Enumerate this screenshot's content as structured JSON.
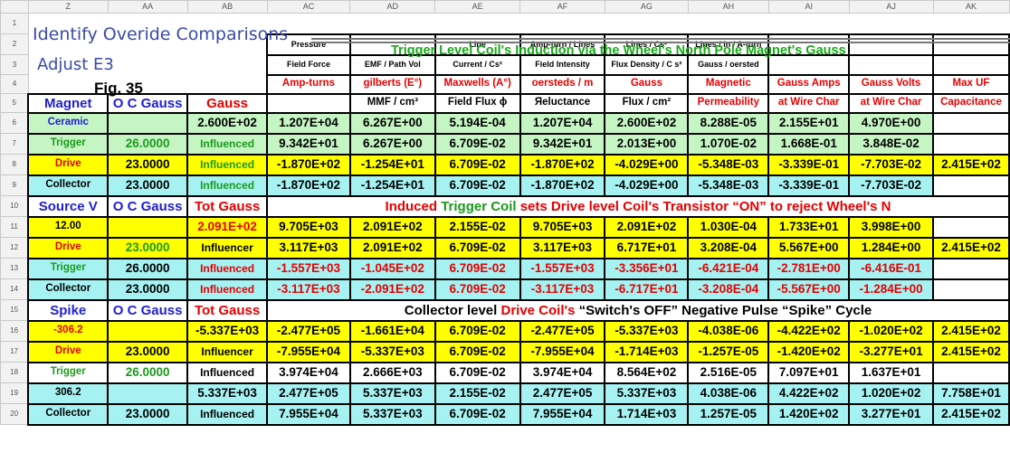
{
  "columns": [
    "Z",
    "AA",
    "AB",
    "AC",
    "AD",
    "AE",
    "AF",
    "AG",
    "AH",
    "AI",
    "AJ",
    "AK"
  ],
  "row_numbers": [
    "1",
    "2",
    "3",
    "4",
    "5",
    "6",
    "7",
    "8",
    "9",
    "10",
    "11",
    "12",
    "13",
    "14",
    "15",
    "16",
    "17",
    "18",
    "19",
    "20"
  ],
  "title": "Identify Overide Comparisons",
  "subtitle": "Adjust E3",
  "figure": "Fig. 35",
  "induction_title": "Trigger Level Coil's Induction via the Wheel's North Pole Magnet's Gauss",
  "headers": {
    "row2": [
      "Pressure",
      "",
      "Line",
      "Amp-turn / Lines",
      "Lines / Cs²",
      "Lines / in / A-turn",
      "",
      ""
    ],
    "row3": [
      "Field Force",
      "EMF / Path Vol",
      "Current / Cs²",
      "Field Intensity",
      "Flux Density / C s²",
      "Gauss / oersted",
      "",
      ""
    ],
    "row4": [
      "Amp-turns",
      "gilberts (E°)",
      "Maxwells (A°)",
      "oersteds / m",
      "Gauss",
      "Magnetic",
      "Gauss Amps",
      "Gauss Volts",
      "Max UF"
    ],
    "row5_left": [
      "Magnet",
      "O C Gauss",
      "Gauss"
    ],
    "row5": [
      "",
      "MMF / cm³",
      "Field Flux ϕ",
      "Яeluctance",
      "Flux / cm²",
      "Permeability",
      "at Wire Char",
      "at Wire Char",
      "Capacitance"
    ]
  },
  "section1": [
    {
      "label": "Ceramic",
      "oc": "",
      "gauss": "2.600E+02",
      "vals": [
        "1.207E+04",
        "6.267E+00",
        "5.194E-04",
        "1.207E+04",
        "2.600E+02",
        "8.288E-05",
        "2.155E+01",
        "4.970E+00",
        ""
      ]
    },
    {
      "label": "Trigger",
      "oc": "26.0000",
      "gauss": "Influenced",
      "vals": [
        "9.342E+01",
        "6.267E+00",
        "6.709E-02",
        "9.342E+01",
        "2.013E+00",
        "1.070E-02",
        "1.668E-01",
        "3.848E-02",
        ""
      ]
    },
    {
      "label": "Drive",
      "oc": "23.0000",
      "gauss": "Influenced",
      "vals": [
        "-1.870E+02",
        "-1.254E+01",
        "6.709E-02",
        "-1.870E+02",
        "-4.029E+00",
        "-5.348E-03",
        "-3.339E-01",
        "-7.703E-02",
        "2.415E+02"
      ]
    },
    {
      "label": "Collector",
      "oc": "23.0000",
      "gauss": "Influenced",
      "vals": [
        "-1.870E+02",
        "-1.254E+01",
        "6.709E-02",
        "-1.870E+02",
        "-4.029E+00",
        "-5.348E-03",
        "-3.339E-01",
        "-7.703E-02",
        ""
      ]
    }
  ],
  "section2_header": {
    "a": "Source V",
    "b": "O C Gauss",
    "c": "Tot Gauss",
    "banner_1": "Induced ",
    "banner_2": "Trigger Coil",
    "banner_3": " sets Drive level Coil's Transistor “ON” to reject Wheel's N"
  },
  "section2": [
    {
      "label": "12.00",
      "oc": "",
      "gauss": "2.091E+02",
      "vals": [
        "9.705E+03",
        "2.091E+02",
        "2.155E-02",
        "9.705E+03",
        "2.091E+02",
        "1.030E-04",
        "1.733E+01",
        "3.998E+00",
        ""
      ]
    },
    {
      "label": "Drive",
      "oc": "23.0000",
      "gauss": "Influencer",
      "vals": [
        "3.117E+03",
        "2.091E+02",
        "6.709E-02",
        "3.117E+03",
        "6.717E+01",
        "3.208E-04",
        "5.567E+00",
        "1.284E+00",
        "2.415E+02"
      ]
    },
    {
      "label": "Trigger",
      "oc": "26.0000",
      "gauss": "Influenced",
      "vals": [
        "-1.557E+03",
        "-1.045E+02",
        "6.709E-02",
        "-1.557E+03",
        "-3.356E+01",
        "-6.421E-04",
        "-2.781E+00",
        "-6.416E-01",
        ""
      ]
    },
    {
      "label": "Collector",
      "oc": "23.0000",
      "gauss": "Influenced",
      "vals": [
        "-3.117E+03",
        "-2.091E+02",
        "6.709E-02",
        "-3.117E+03",
        "-6.717E+01",
        "-3.208E-04",
        "-5.567E+00",
        "-1.284E+00",
        ""
      ]
    }
  ],
  "section3_header": {
    "a": "Spike",
    "b": "O C Gauss",
    "c": "Tot Gauss",
    "banner_1": "Collector level ",
    "banner_2": "Drive Coil's",
    "banner_3": " “Switch's OFF” Negative Pulse “Spike” Cycle"
  },
  "section3": [
    {
      "label": "-306.2",
      "oc": "",
      "gauss": "-5.337E+03",
      "vals": [
        "-2.477E+05",
        "-1.661E+04",
        "6.709E-02",
        "-2.477E+05",
        "-5.337E+03",
        "-4.038E-06",
        "-4.422E+02",
        "-1.020E+02",
        "2.415E+02"
      ]
    },
    {
      "label": "Drive",
      "oc": "23.0000",
      "gauss": "Influencer",
      "vals": [
        "-7.955E+04",
        "-5.337E+03",
        "6.709E-02",
        "-7.955E+04",
        "-1.714E+03",
        "-1.257E-05",
        "-1.420E+02",
        "-3.277E+01",
        "2.415E+02"
      ]
    },
    {
      "label": "Trigger",
      "oc": "26.0000",
      "gauss": "Influenced",
      "vals": [
        "3.974E+04",
        "2.666E+03",
        "6.709E-02",
        "3.974E+04",
        "8.564E+02",
        "2.516E-05",
        "7.097E+01",
        "1.637E+01",
        ""
      ]
    },
    {
      "label": "306.2",
      "oc": "",
      "gauss": "5.337E+03",
      "vals": [
        "2.477E+05",
        "5.337E+03",
        "2.155E-02",
        "2.477E+05",
        "5.337E+03",
        "4.038E-06",
        "4.422E+02",
        "1.020E+02",
        "7.758E+01"
      ]
    },
    {
      "label": "Collector",
      "oc": "23.0000",
      "gauss": "Influenced",
      "vals": [
        "7.955E+04",
        "5.337E+03",
        "6.709E-02",
        "7.955E+04",
        "1.714E+03",
        "1.257E-05",
        "1.420E+02",
        "3.277E+01",
        "2.415E+02"
      ]
    }
  ],
  "colors": {
    "green_fill": "#c6f5c4",
    "yellow_fill": "#ffff00",
    "cyan_fill": "#a6f2f2",
    "blue_text": "#1f1fd6",
    "green_text": "#1a9a1a",
    "red_text": "#e60000"
  }
}
